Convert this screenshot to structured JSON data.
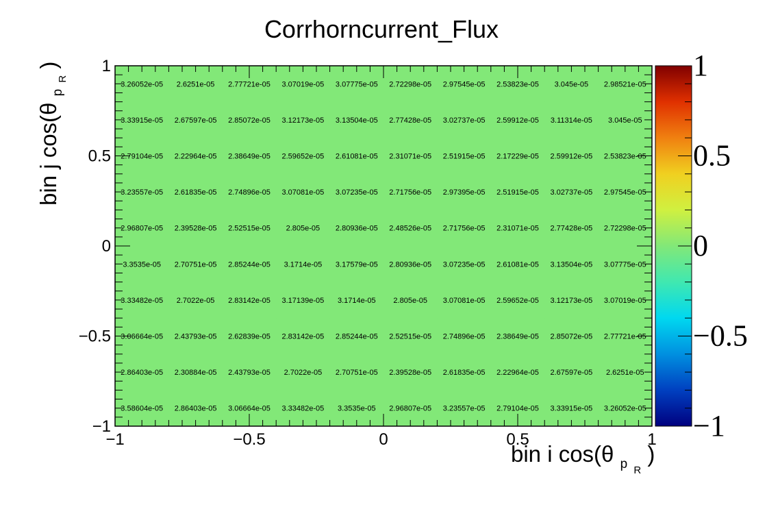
{
  "chart_data": {
    "type": "heatmap",
    "title": "Corrhorncurrent_Flux",
    "xlabel": "bin i cos(θ",
    "ylabel": "bin j cos(θ",
    "axis_label_subscript": "p",
    "axis_label_subsubscript": "R",
    "axis_label_close": ")",
    "xlim": [
      -1,
      1
    ],
    "ylim": [
      -1,
      1
    ],
    "zlim": [
      -1,
      1
    ],
    "x_tick_labels": [
      "−1",
      "−0.5",
      "0",
      "0.5",
      "1"
    ],
    "y_tick_labels": [
      "−1",
      "−0.5",
      "0",
      "0.5",
      "1"
    ],
    "z_tick_labels": [
      "−1",
      "−0.5",
      "0",
      "0.5",
      "1"
    ],
    "x_tick_values": [
      -1,
      -0.5,
      0,
      0.5,
      1
    ],
    "y_tick_values": [
      -1,
      -0.5,
      0,
      0.5,
      1
    ],
    "z_tick_values": [
      -1,
      -0.5,
      0,
      0.5,
      1
    ],
    "cell_color": "#82e878",
    "rows": [
      [
        "3.26052e-05",
        "2.6251e-05",
        "2.77721e-05",
        "3.07019e-05",
        "3.07775e-05",
        "2.72298e-05",
        "2.97545e-05",
        "2.53823e-05",
        "3.045e-05",
        "2.98521e-05"
      ],
      [
        "3.33915e-05",
        "2.67597e-05",
        "2.85072e-05",
        "3.12173e-05",
        "3.13504e-05",
        "2.77428e-05",
        "3.02737e-05",
        "2.59912e-05",
        "3.11314e-05",
        "3.045e-05"
      ],
      [
        "2.79104e-05",
        "2.22964e-05",
        "2.38649e-05",
        "2.59652e-05",
        "2.61081e-05",
        "2.31071e-05",
        "2.51915e-05",
        "2.17229e-05",
        "2.59912e-05",
        "2.53823e-05"
      ],
      [
        "3.23557e-05",
        "2.61835e-05",
        "2.74896e-05",
        "3.07081e-05",
        "3.07235e-05",
        "2.71756e-05",
        "2.97395e-05",
        "2.51915e-05",
        "3.02737e-05",
        "2.97545e-05"
      ],
      [
        "2.96807e-05",
        "2.39528e-05",
        "2.52515e-05",
        "2.805e-05",
        "2.80936e-05",
        "2.48526e-05",
        "2.71756e-05",
        "2.31071e-05",
        "2.77428e-05",
        "2.72298e-05"
      ],
      [
        "3.3535e-05",
        "2.70751e-05",
        "2.85244e-05",
        "3.1714e-05",
        "3.17579e-05",
        "2.80936e-05",
        "3.07235e-05",
        "2.61081e-05",
        "3.13504e-05",
        "3.07775e-05"
      ],
      [
        "3.33482e-05",
        "2.7022e-05",
        "2.83142e-05",
        "3.17139e-05",
        "3.1714e-05",
        "2.805e-05",
        "3.07081e-05",
        "2.59652e-05",
        "3.12173e-05",
        "3.07019e-05"
      ],
      [
        "3.06664e-05",
        "2.43793e-05",
        "2.62839e-05",
        "2.83142e-05",
        "2.85244e-05",
        "2.52515e-05",
        "2.74896e-05",
        "2.38649e-05",
        "2.85072e-05",
        "2.77721e-05"
      ],
      [
        "2.86403e-05",
        "2.30884e-05",
        "2.43793e-05",
        "2.7022e-05",
        "2.70751e-05",
        "2.39528e-05",
        "2.61835e-05",
        "2.22964e-05",
        "2.67597e-05",
        "2.6251e-05"
      ],
      [
        "3.58604e-05",
        "2.86403e-05",
        "3.06664e-05",
        "3.33482e-05",
        "3.3535e-05",
        "2.96807e-05",
        "3.23557e-05",
        "2.79104e-05",
        "3.33915e-05",
        "3.26052e-05"
      ]
    ],
    "palette": [
      "#00007f",
      "#0040c0",
      "#0090e0",
      "#00d8f0",
      "#40e8b0",
      "#82e878",
      "#d0f040",
      "#f0d020",
      "#f08010",
      "#e03000",
      "#800000"
    ]
  }
}
